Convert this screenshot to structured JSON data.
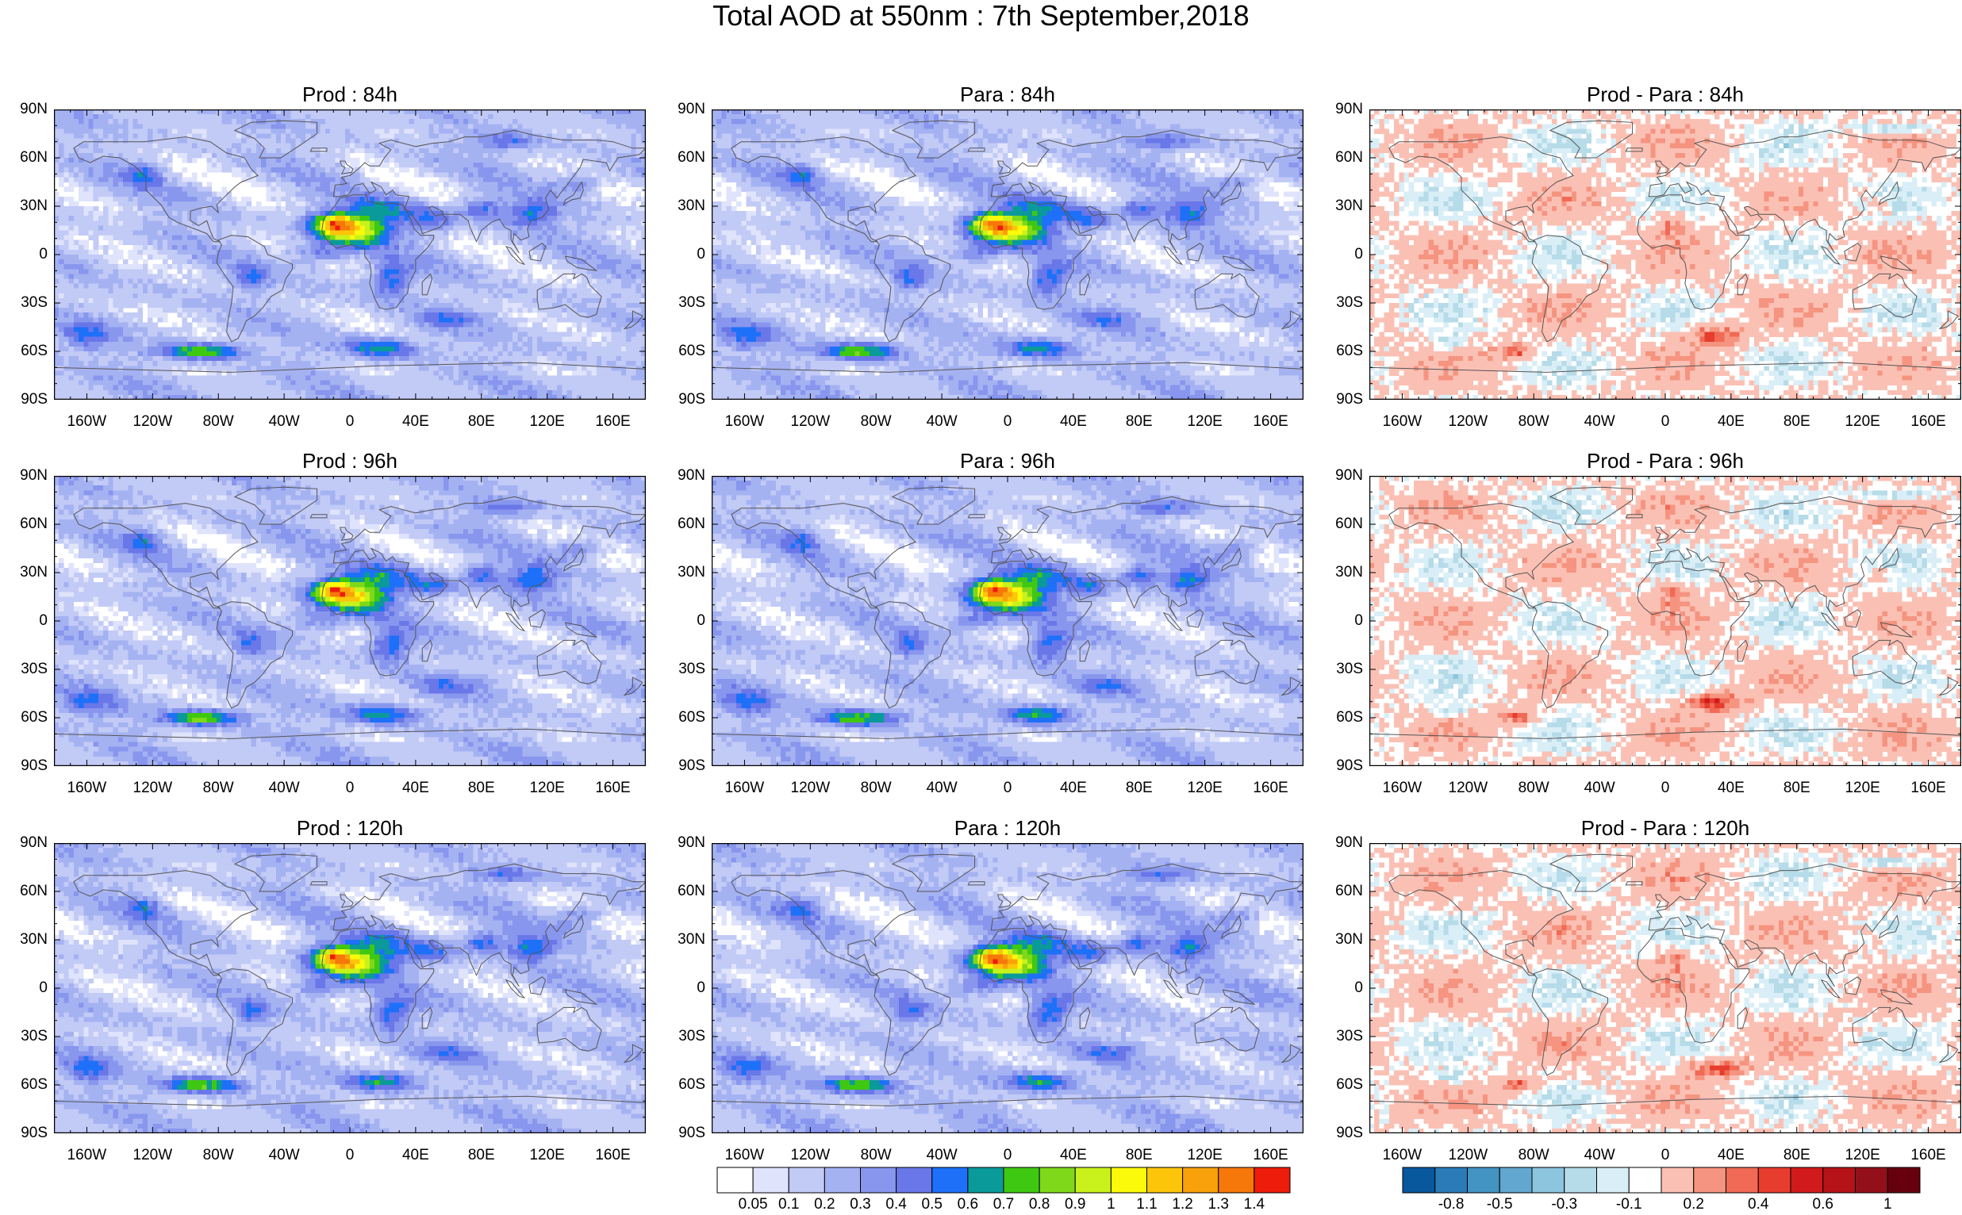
{
  "title": "Total AOD at 550nm : 7th September,2018",
  "panels": [
    {
      "title": "Prod : 84h",
      "kind": "aod",
      "seed": 11
    },
    {
      "title": "Para : 84h",
      "kind": "aod",
      "seed": 23
    },
    {
      "title": "Prod - Para : 84h",
      "kind": "diff",
      "seed": 37
    },
    {
      "title": "Prod : 96h",
      "kind": "aod",
      "seed": 41
    },
    {
      "title": "Para : 96h",
      "kind": "aod",
      "seed": 53
    },
    {
      "title": "Prod - Para : 96h",
      "kind": "diff",
      "seed": 67
    },
    {
      "title": "Prod : 120h",
      "kind": "aod",
      "seed": 71
    },
    {
      "title": "Para : 120h",
      "kind": "aod",
      "seed": 83
    },
    {
      "title": "Prod - Para : 120h",
      "kind": "diff",
      "seed": 97
    }
  ],
  "axes": {
    "y_ticks": [
      "90N",
      "60N",
      "30N",
      "0",
      "30S",
      "60S",
      "90S"
    ],
    "y_values": [
      90,
      60,
      30,
      0,
      -30,
      -60,
      -90
    ],
    "x_ticks": [
      "160W",
      "120W",
      "80W",
      "40W",
      "0",
      "40E",
      "80E",
      "120E",
      "160E"
    ],
    "x_values": [
      -160,
      -120,
      -80,
      -40,
      0,
      40,
      80,
      120,
      160
    ],
    "xlim": [
      -180,
      180
    ],
    "ylim": [
      -90,
      90
    ]
  },
  "colors": {
    "aod_levels": [
      "#ffffff",
      "#dfe3fb",
      "#c2caf6",
      "#a5b2f2",
      "#8896ee",
      "#6a77e8",
      "#1e70f8",
      "#0a9a9a",
      "#3ec812",
      "#7fd81a",
      "#c9f21c",
      "#fafa0a",
      "#fcc50a",
      "#f8a10a",
      "#f6770a",
      "#ee1c0a"
    ],
    "diff_levels": [
      "#08589e",
      "#2b7bb9",
      "#4393c3",
      "#62a7cf",
      "#8ec5de",
      "#b6dbe9",
      "#d9eef6",
      "#ffffff",
      "#fbc0b4",
      "#f59480",
      "#f06a55",
      "#e63d2e",
      "#d11a1c",
      "#b51318",
      "#93101a",
      "#67000d"
    ],
    "coastline": "#555555"
  },
  "chart_data": [
    {
      "type": "heatmap",
      "name": "Total AOD colorbar",
      "levels": [
        0.05,
        0.1,
        0.2,
        0.3,
        0.4,
        0.5,
        0.6,
        0.7,
        0.8,
        0.9,
        1,
        1.1,
        1.2,
        1.3,
        1.4
      ],
      "labels": [
        "0.05",
        "0.1",
        "0.2",
        "0.3",
        "0.4",
        "0.5",
        "0.6",
        "0.7",
        "0.8",
        "0.9",
        "1",
        "1.1",
        "1.2",
        "1.3",
        "1.4"
      ]
    },
    {
      "type": "heatmap",
      "name": "Prod - Para colorbar",
      "levels": [
        -0.8,
        -0.7,
        -0.5,
        -0.4,
        -0.3,
        -0.2,
        -0.1,
        0,
        0.2,
        0.3,
        0.4,
        0.5,
        0.6,
        0.7,
        1
      ],
      "labels": [
        "-0.8",
        "-0.5",
        "-0.3",
        "-0.1",
        "0.2",
        "0.4",
        "0.6",
        "1"
      ],
      "label_positions": [
        0.5,
        2,
        4,
        6,
        8,
        10,
        12,
        14
      ]
    }
  ]
}
